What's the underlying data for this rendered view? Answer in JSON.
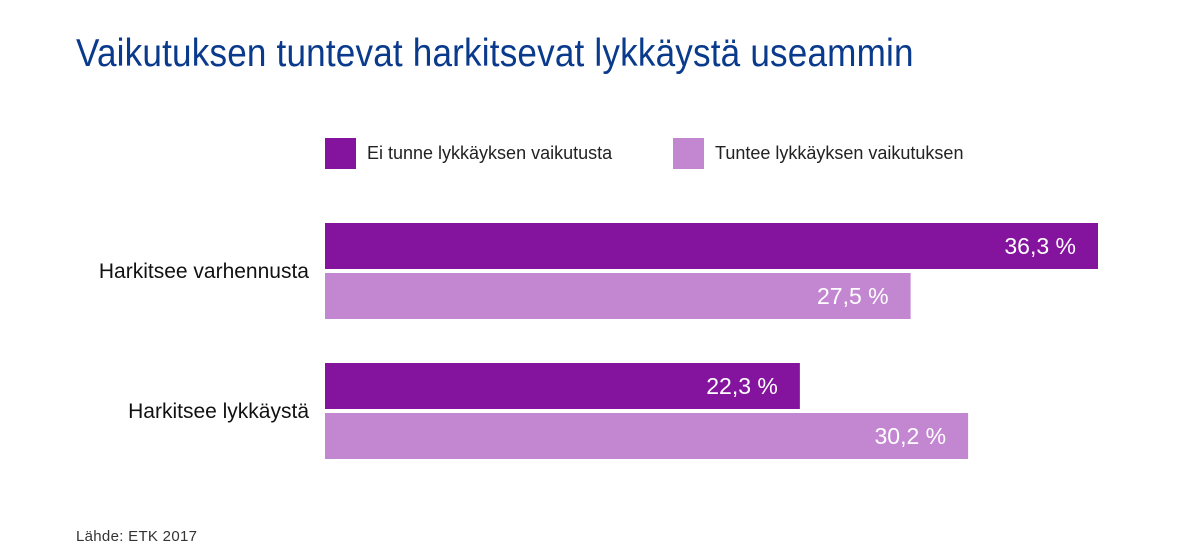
{
  "chart_data": {
    "type": "bar",
    "orientation": "horizontal",
    "title": "Vaikutuksen tuntevat harkitsevat lykkäystä useammin",
    "categories": [
      "Harkitsee varhennusta",
      "Harkitsee lykkäystä"
    ],
    "series": [
      {
        "name": "Ei tunne lykkäyksen vaikutusta",
        "color": "#84149e",
        "values": [
          36.3,
          22.3
        ],
        "labels": [
          "36,3 %",
          "22,3 %"
        ]
      },
      {
        "name": "Tuntee lykkäyksen vaikutuksen",
        "color": "#c387d2",
        "values": [
          27.5,
          30.2
        ],
        "labels": [
          "27,5 %",
          "30,2 %"
        ]
      }
    ],
    "xlim": [
      0,
      36.3
    ],
    "grid": false,
    "legend_position": "top",
    "source": "Lähde: ETK 2017"
  }
}
